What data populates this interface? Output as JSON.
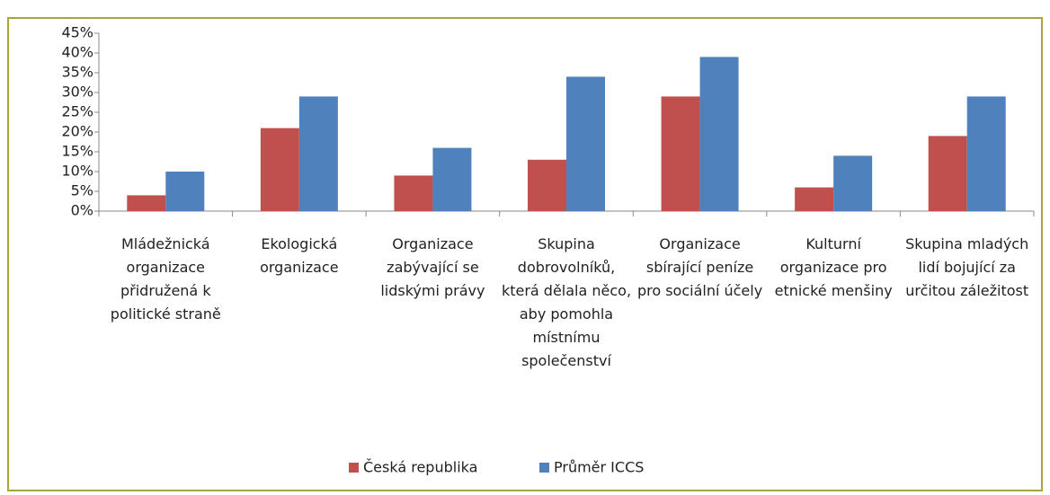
{
  "chart_data": {
    "type": "bar",
    "categories": [
      "Mládežnická organizace přidružená k politické straně",
      "Ekologická organizace",
      "Organizace zabývající se lidskými právy",
      "Skupina dobrovolníků, která dělala něco, aby pomohla místnímu společenství",
      "Organizace sbírající peníze pro sociální účely",
      "Kulturní organizace pro etnické menšiny",
      "Skupina mladých lidí bojující za určitou záležitost"
    ],
    "series": [
      {
        "name": "Česká republika",
        "color": "#c0504d",
        "values": [
          4,
          21,
          9,
          13,
          29,
          6,
          19
        ]
      },
      {
        "name": "Průměr ICCS",
        "color": "#4f81bd",
        "values": [
          10,
          29,
          16,
          34,
          39,
          14,
          29
        ]
      }
    ],
    "ylim": [
      0,
      45
    ],
    "yticks": [
      {
        "value": 0,
        "label": "0%"
      },
      {
        "value": 5,
        "label": "5%"
      },
      {
        "value": 10,
        "label": "10%"
      },
      {
        "value": 15,
        "label": "15%"
      },
      {
        "value": 20,
        "label": "20%"
      },
      {
        "value": 25,
        "label": "25%"
      },
      {
        "value": 30,
        "label": "30%"
      },
      {
        "value": 35,
        "label": "35%"
      },
      {
        "value": 40,
        "label": "40%"
      },
      {
        "value": 45,
        "label": "45%"
      }
    ],
    "grid": false,
    "legend": "bottom"
  }
}
